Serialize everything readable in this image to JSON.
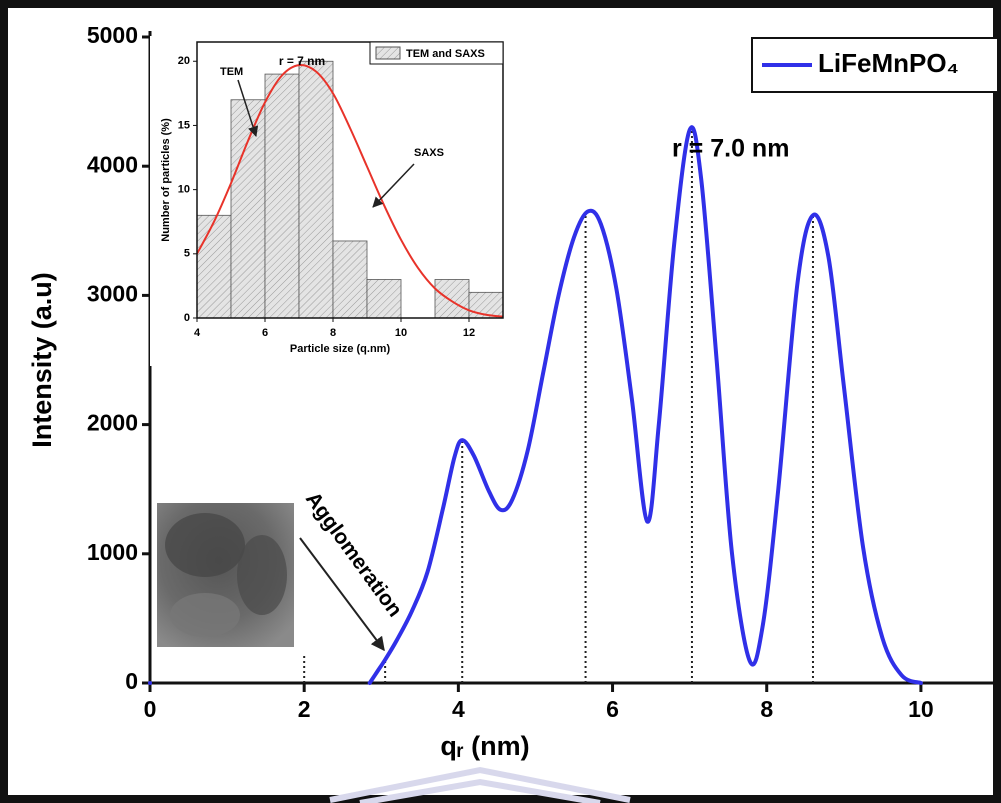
{
  "chart_data": [
    {
      "type": "line",
      "x_label": "qᵣ (nm)",
      "y_label": "Intensity (a.u)",
      "x": [
        0,
        1.5,
        2.85,
        2.95,
        3.05,
        3.2,
        3.4,
        3.6,
        3.8,
        3.95,
        4.05,
        4.2,
        4.4,
        4.55,
        4.7,
        4.9,
        5.1,
        5.3,
        5.5,
        5.68,
        5.85,
        6.05,
        6.25,
        6.45,
        6.6,
        6.8,
        7.0,
        7.15,
        7.35,
        7.55,
        7.78,
        7.95,
        8.15,
        8.4,
        8.6,
        8.8,
        9.0,
        9.25,
        9.5,
        9.75,
        10.0
      ],
      "series": [
        {
          "name": "LiFeMnPO₄",
          "color": "#3030e8",
          "values": [
            0,
            null,
            0,
            90,
            180,
            330,
            560,
            860,
            1350,
            1750,
            1880,
            1760,
            1480,
            1340,
            1420,
            1800,
            2400,
            3000,
            3450,
            3650,
            3550,
            3050,
            2200,
            1250,
            2000,
            3400,
            4280,
            3900,
            2500,
            1000,
            170,
            450,
            1500,
            3100,
            3620,
            3300,
            2300,
            1050,
            350,
            60,
            0
          ]
        }
      ],
      "reference_lines": [
        {
          "x": 2,
          "y": 230
        },
        {
          "x": 3.05,
          "y": 180
        },
        {
          "x": 4.05,
          "y": 1880
        },
        {
          "x": 5.65,
          "y": 3650
        },
        {
          "x": 7.03,
          "y": 4280
        },
        {
          "x": 8.6,
          "y": 3620
        }
      ],
      "annotations": [
        "r = 7.0 nm",
        "Agglomeration"
      ],
      "xlim": [
        0,
        11
      ],
      "ylim": [
        0,
        5000
      ],
      "xticks": [
        0,
        2,
        4,
        6,
        8,
        10
      ],
      "yticks": [
        0,
        1000,
        2000,
        3000,
        4000,
        5000
      ],
      "legend": "top-right"
    },
    {
      "type": "histogram",
      "x_label": "Particle size (q.nm)",
      "y_label": "Number of particles (%)",
      "bins": [
        4,
        5,
        6,
        7,
        8,
        9,
        10,
        11,
        12,
        13
      ],
      "counts": [
        8,
        17,
        19,
        20,
        6,
        3,
        0,
        3,
        2
      ],
      "bar_name": "TEM and SAXS",
      "bar_color": "#d8d8d8",
      "curve": {
        "color": "#e8332a",
        "x": [
          4,
          4.5,
          5,
          5.5,
          6,
          6.5,
          7,
          7.5,
          8,
          8.5,
          9,
          9.5,
          10,
          10.5,
          11,
          11.5,
          12,
          12.5,
          13
        ],
        "values": [
          5,
          7.5,
          10.5,
          13.8,
          16.8,
          18.9,
          19.7,
          19.2,
          17.5,
          14.8,
          11.8,
          8.8,
          6.1,
          3.9,
          2.3,
          1.3,
          0.6,
          0.25,
          0.1
        ]
      },
      "annotations": [
        "r = 7 nm",
        "TEM",
        "SAXS"
      ],
      "xlim": [
        4,
        13
      ],
      "ylim": [
        0,
        21.5
      ],
      "xticks": [
        4,
        6,
        8,
        10,
        12
      ],
      "yticks": [
        0,
        5,
        10,
        15,
        20
      ]
    }
  ]
}
